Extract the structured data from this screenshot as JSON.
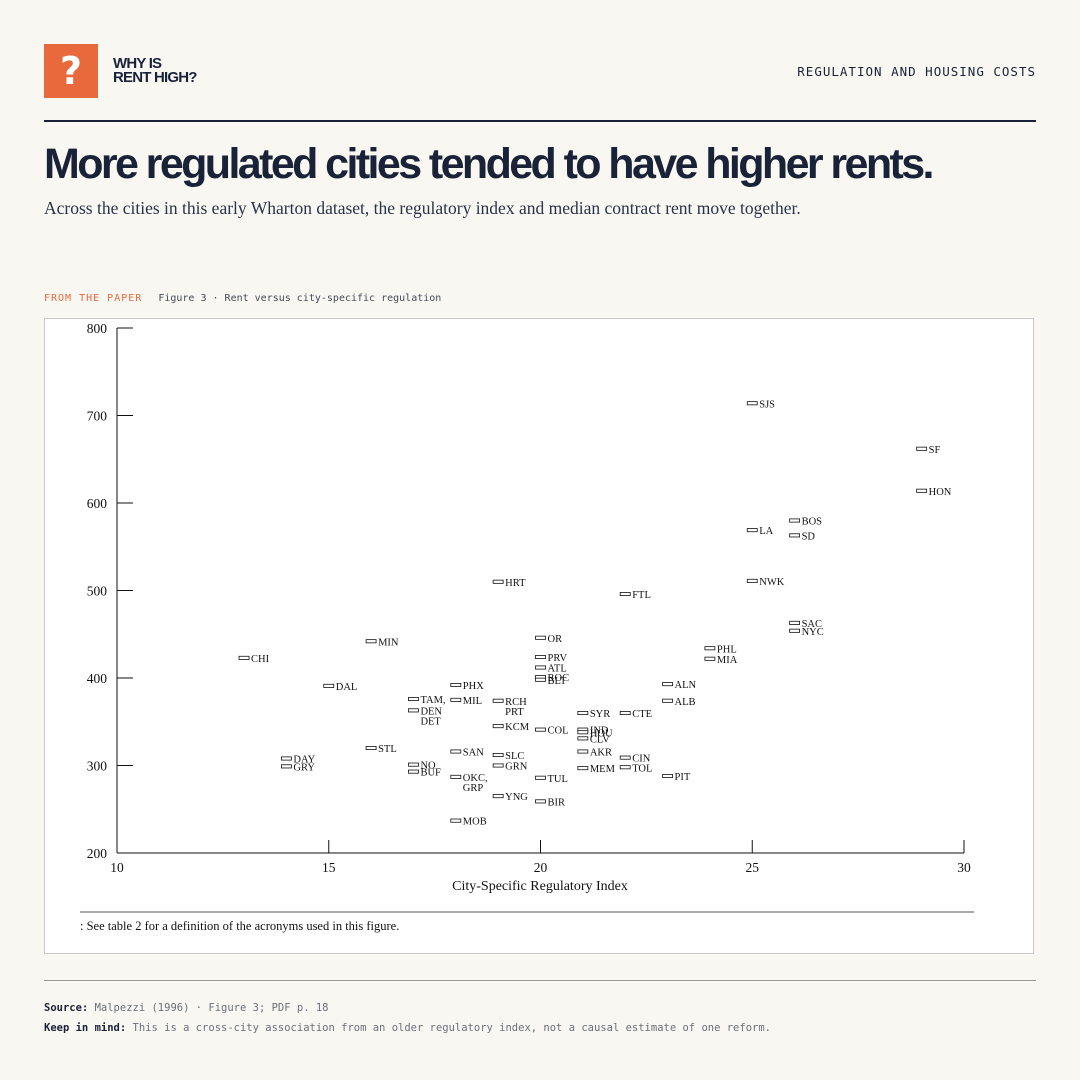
{
  "brand": {
    "badge": "?",
    "line1": "WHY IS",
    "line2": "RENT HIGH?"
  },
  "header": {
    "section_label": "REGULATION AND HOUSING COSTS"
  },
  "headline": "More regulated cities tended to have higher rents.",
  "subhead": "Across the cities in this early Wharton dataset, the regulatory index and median contract rent move together.",
  "figure": {
    "kicker": "FROM THE PAPER",
    "caption": "Figure 3 · Rent versus city-specific regulation",
    "footnote": ": See table 2 for a definition of the acronyms used in this figure."
  },
  "colors": {
    "accent": "#e8693c",
    "ink": "#1a2238",
    "background": "#f8f7f2"
  },
  "chart_data": {
    "type": "scatter",
    "xlabel": "City-Specific Regulatory Index",
    "ylabel": "",
    "xlim": [
      10,
      30
    ],
    "ylim": [
      200,
      800
    ],
    "xticks": [
      10,
      15,
      20,
      25,
      30
    ],
    "yticks": [
      200,
      300,
      400,
      500,
      600,
      700,
      800
    ],
    "grid": false,
    "points": [
      {
        "label": "CHI",
        "x": 13,
        "y": 423
      },
      {
        "label": "DAL",
        "x": 15,
        "y": 391
      },
      {
        "label": "MIN",
        "x": 16,
        "y": 442
      },
      {
        "label": "STL",
        "x": 16,
        "y": 320
      },
      {
        "label": "DAY",
        "x": 14,
        "y": 308
      },
      {
        "label": "GRY",
        "x": 14,
        "y": 299
      },
      {
        "label": "TAM,",
        "x": 17,
        "y": 376
      },
      {
        "label": "DEN",
        "x": 17,
        "y": 363
      },
      {
        "label": "DET",
        "x": 17,
        "y": 363,
        "note": "label below DEN"
      },
      {
        "label": "NO",
        "x": 17,
        "y": 301
      },
      {
        "label": "BUF",
        "x": 17,
        "y": 293
      },
      {
        "label": "PHX",
        "x": 18,
        "y": 392
      },
      {
        "label": "MIL",
        "x": 18,
        "y": 375
      },
      {
        "label": "SAN",
        "x": 18,
        "y": 316
      },
      {
        "label": "OKC,",
        "x": 18,
        "y": 287
      },
      {
        "label": "GRP",
        "x": 18,
        "y": 287,
        "note": "label below OKC"
      },
      {
        "label": "MOB",
        "x": 18,
        "y": 237
      },
      {
        "label": "HRT",
        "x": 19,
        "y": 510
      },
      {
        "label": "RCH",
        "x": 19,
        "y": 374
      },
      {
        "label": "PRT",
        "x": 19,
        "y": 374,
        "note": "label below RCH"
      },
      {
        "label": "KCM",
        "x": 19,
        "y": 345
      },
      {
        "label": "SLC",
        "x": 19,
        "y": 312
      },
      {
        "label": "GRN",
        "x": 19,
        "y": 300
      },
      {
        "label": "YNG",
        "x": 19,
        "y": 265
      },
      {
        "label": "OR",
        "x": 20,
        "y": 446
      },
      {
        "label": "PRV",
        "x": 20,
        "y": 424
      },
      {
        "label": "ATL",
        "x": 20,
        "y": 412
      },
      {
        "label": "ROC",
        "x": 20,
        "y": 401
      },
      {
        "label": "BLT",
        "x": 20,
        "y": 398
      },
      {
        "label": "COL",
        "x": 20,
        "y": 341
      },
      {
        "label": "TUL",
        "x": 20,
        "y": 286
      },
      {
        "label": "BIR",
        "x": 20,
        "y": 259
      },
      {
        "label": "SYR",
        "x": 21,
        "y": 360
      },
      {
        "label": "IND",
        "x": 21,
        "y": 341
      },
      {
        "label": "HOU",
        "x": 21,
        "y": 338
      },
      {
        "label": "CLV",
        "x": 21,
        "y": 331
      },
      {
        "label": "AKR",
        "x": 21,
        "y": 316
      },
      {
        "label": "MEM",
        "x": 21,
        "y": 297
      },
      {
        "label": "FTL",
        "x": 22,
        "y": 496
      },
      {
        "label": "CTE",
        "x": 22,
        "y": 360
      },
      {
        "label": "CIN",
        "x": 22,
        "y": 309
      },
      {
        "label": "TOL",
        "x": 22,
        "y": 298
      },
      {
        "label": "ALN",
        "x": 23,
        "y": 393
      },
      {
        "label": "ALB",
        "x": 23,
        "y": 374
      },
      {
        "label": "PIT",
        "x": 23,
        "y": 288
      },
      {
        "label": "PHL",
        "x": 24,
        "y": 434
      },
      {
        "label": "MIA",
        "x": 24,
        "y": 422
      },
      {
        "label": "SJS",
        "x": 25,
        "y": 714
      },
      {
        "label": "LA",
        "x": 25,
        "y": 569
      },
      {
        "label": "NWK",
        "x": 25,
        "y": 511
      },
      {
        "label": "BOS",
        "x": 26,
        "y": 580
      },
      {
        "label": "SD",
        "x": 26,
        "y": 563
      },
      {
        "label": "SAC",
        "x": 26,
        "y": 463
      },
      {
        "label": "NYC",
        "x": 26,
        "y": 454
      },
      {
        "label": "SF",
        "x": 29,
        "y": 662
      },
      {
        "label": "HON",
        "x": 29,
        "y": 614
      }
    ]
  },
  "sources": {
    "source_label": "Source:",
    "source_text": "Malpezzi (1996) · Figure 3; PDF p. 18",
    "caveat_label": "Keep in mind:",
    "caveat_text": "This is a cross-city association from an older regulatory index, not a causal estimate of one reform."
  }
}
